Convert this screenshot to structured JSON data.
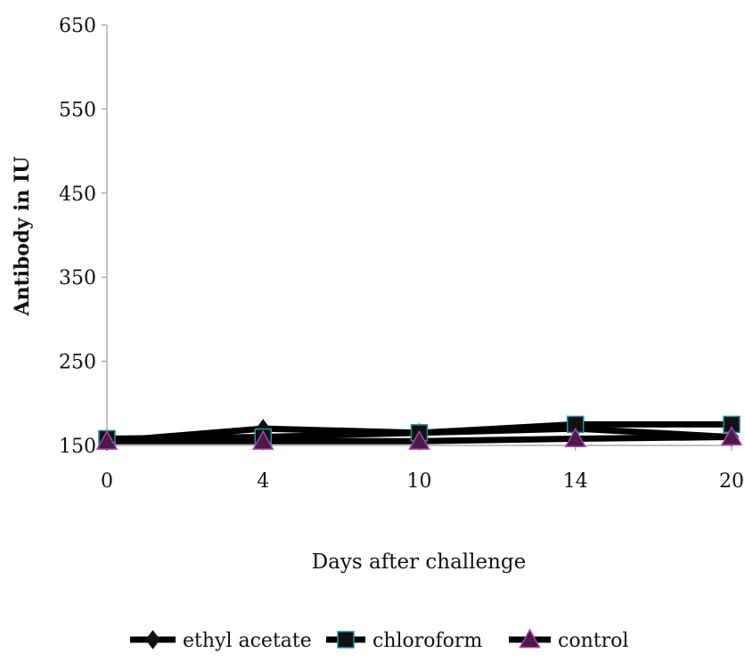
{
  "chart_data": {
    "type": "line",
    "title": "",
    "xlabel": "Days after challenge",
    "ylabel": "Antibody in IU",
    "x": [
      "0",
      "4",
      "10",
      "14",
      "20"
    ],
    "ylim": [
      150,
      650
    ],
    "yticks": [
      150,
      250,
      350,
      450,
      550,
      650
    ],
    "grid": false,
    "legend_position": "bottom",
    "series": [
      {
        "name": "ethyl acetate",
        "marker": "diamond",
        "values": [
          155,
          170,
          165,
          170,
          160
        ]
      },
      {
        "name": "chloroform",
        "marker": "square",
        "values": [
          158,
          160,
          165,
          175,
          175
        ]
      },
      {
        "name": "control",
        "marker": "triangle",
        "values": [
          155,
          155,
          155,
          158,
          160
        ]
      }
    ],
    "colors": {
      "line": "#000000",
      "square_edge": "#1f8fa0",
      "triangle_fill": "#4a1a4a",
      "triangle_edge": "#b040b0"
    }
  }
}
